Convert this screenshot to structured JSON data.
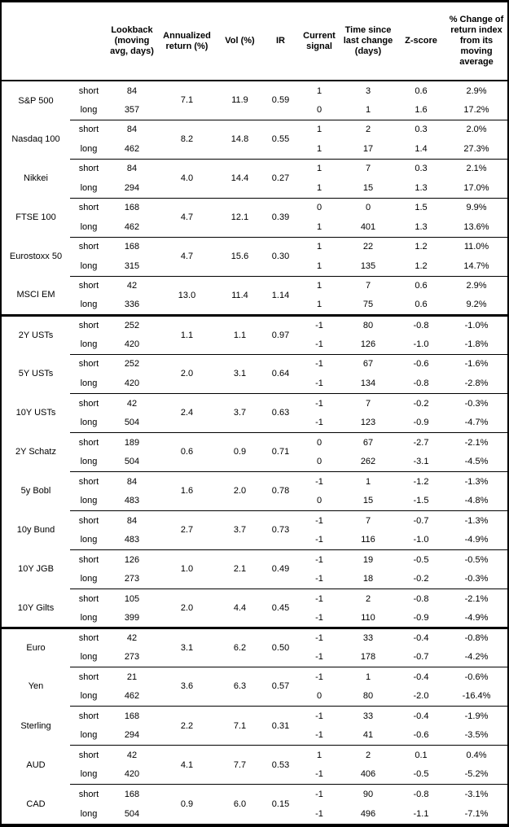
{
  "table": {
    "headers": [
      "",
      "",
      "Lookback (moving avg, days)",
      "Annualized return (%)",
      "Vol (%)",
      "IR",
      "Current signal",
      "Time since last change (days)",
      "Z-score",
      "% Change of return index from its moving average"
    ],
    "leg_labels": {
      "short": "short",
      "long": "long"
    },
    "sections": [
      {
        "assets": [
          {
            "name": "S&P 500",
            "annualized_return": "7.1",
            "vol": "11.9",
            "ir": "0.59",
            "short": {
              "lookback": "84",
              "signal": "1",
              "time_since": "3",
              "z_score": "0.6",
              "pct_change": "2.9%"
            },
            "long": {
              "lookback": "357",
              "signal": "0",
              "time_since": "1",
              "z_score": "1.6",
              "pct_change": "17.2%"
            }
          },
          {
            "name": "Nasdaq 100",
            "annualized_return": "8.2",
            "vol": "14.8",
            "ir": "0.55",
            "short": {
              "lookback": "84",
              "signal": "1",
              "time_since": "2",
              "z_score": "0.3",
              "pct_change": "2.0%"
            },
            "long": {
              "lookback": "462",
              "signal": "1",
              "time_since": "17",
              "z_score": "1.4",
              "pct_change": "27.3%"
            }
          },
          {
            "name": "Nikkei",
            "annualized_return": "4.0",
            "vol": "14.4",
            "ir": "0.27",
            "short": {
              "lookback": "84",
              "signal": "1",
              "time_since": "7",
              "z_score": "0.3",
              "pct_change": "2.1%"
            },
            "long": {
              "lookback": "294",
              "signal": "1",
              "time_since": "15",
              "z_score": "1.3",
              "pct_change": "17.0%"
            }
          },
          {
            "name": "FTSE 100",
            "annualized_return": "4.7",
            "vol": "12.1",
            "ir": "0.39",
            "short": {
              "lookback": "168",
              "signal": "0",
              "time_since": "0",
              "z_score": "1.5",
              "pct_change": "9.9%"
            },
            "long": {
              "lookback": "462",
              "signal": "1",
              "time_since": "401",
              "z_score": "1.3",
              "pct_change": "13.6%"
            }
          },
          {
            "name": "Eurostoxx 50",
            "annualized_return": "4.7",
            "vol": "15.6",
            "ir": "0.30",
            "short": {
              "lookback": "168",
              "signal": "1",
              "time_since": "22",
              "z_score": "1.2",
              "pct_change": "11.0%"
            },
            "long": {
              "lookback": "315",
              "signal": "1",
              "time_since": "135",
              "z_score": "1.2",
              "pct_change": "14.7%"
            }
          },
          {
            "name": "MSCI EM",
            "annualized_return": "13.0",
            "vol": "11.4",
            "ir": "1.14",
            "short": {
              "lookback": "42",
              "signal": "1",
              "time_since": "7",
              "z_score": "0.6",
              "pct_change": "2.9%"
            },
            "long": {
              "lookback": "336",
              "signal": "1",
              "time_since": "75",
              "z_score": "0.6",
              "pct_change": "9.2%"
            }
          }
        ]
      },
      {
        "assets": [
          {
            "name": "2Y USTs",
            "annualized_return": "1.1",
            "vol": "1.1",
            "ir": "0.97",
            "short": {
              "lookback": "252",
              "signal": "-1",
              "time_since": "80",
              "z_score": "-0.8",
              "pct_change": "-1.0%"
            },
            "long": {
              "lookback": "420",
              "signal": "-1",
              "time_since": "126",
              "z_score": "-1.0",
              "pct_change": "-1.8%"
            }
          },
          {
            "name": "5Y USTs",
            "annualized_return": "2.0",
            "vol": "3.1",
            "ir": "0.64",
            "short": {
              "lookback": "252",
              "signal": "-1",
              "time_since": "67",
              "z_score": "-0.6",
              "pct_change": "-1.6%"
            },
            "long": {
              "lookback": "420",
              "signal": "-1",
              "time_since": "134",
              "z_score": "-0.8",
              "pct_change": "-2.8%"
            }
          },
          {
            "name": "10Y USTs",
            "annualized_return": "2.4",
            "vol": "3.7",
            "ir": "0.63",
            "short": {
              "lookback": "42",
              "signal": "-1",
              "time_since": "7",
              "z_score": "-0.2",
              "pct_change": "-0.3%"
            },
            "long": {
              "lookback": "504",
              "signal": "-1",
              "time_since": "123",
              "z_score": "-0.9",
              "pct_change": "-4.7%"
            }
          },
          {
            "name": "2Y Schatz",
            "annualized_return": "0.6",
            "vol": "0.9",
            "ir": "0.71",
            "short": {
              "lookback": "189",
              "signal": "0",
              "time_since": "67",
              "z_score": "-2.7",
              "pct_change": "-2.1%"
            },
            "long": {
              "lookback": "504",
              "signal": "0",
              "time_since": "262",
              "z_score": "-3.1",
              "pct_change": "-4.5%"
            }
          },
          {
            "name": "5y Bobl",
            "annualized_return": "1.6",
            "vol": "2.0",
            "ir": "0.78",
            "short": {
              "lookback": "84",
              "signal": "-1",
              "time_since": "1",
              "z_score": "-1.2",
              "pct_change": "-1.3%"
            },
            "long": {
              "lookback": "483",
              "signal": "0",
              "time_since": "15",
              "z_score": "-1.5",
              "pct_change": "-4.8%"
            }
          },
          {
            "name": "10y Bund",
            "annualized_return": "2.7",
            "vol": "3.7",
            "ir": "0.73",
            "short": {
              "lookback": "84",
              "signal": "-1",
              "time_since": "7",
              "z_score": "-0.7",
              "pct_change": "-1.3%"
            },
            "long": {
              "lookback": "483",
              "signal": "-1",
              "time_since": "116",
              "z_score": "-1.0",
              "pct_change": "-4.9%"
            }
          },
          {
            "name": "10Y JGB",
            "annualized_return": "1.0",
            "vol": "2.1",
            "ir": "0.49",
            "short": {
              "lookback": "126",
              "signal": "-1",
              "time_since": "19",
              "z_score": "-0.5",
              "pct_change": "-0.5%"
            },
            "long": {
              "lookback": "273",
              "signal": "-1",
              "time_since": "18",
              "z_score": "-0.2",
              "pct_change": "-0.3%"
            }
          },
          {
            "name": "10Y Gilts",
            "annualized_return": "2.0",
            "vol": "4.4",
            "ir": "0.45",
            "short": {
              "lookback": "105",
              "signal": "-1",
              "time_since": "2",
              "z_score": "-0.8",
              "pct_change": "-2.1%"
            },
            "long": {
              "lookback": "399",
              "signal": "-1",
              "time_since": "110",
              "z_score": "-0.9",
              "pct_change": "-4.9%"
            }
          }
        ]
      },
      {
        "assets": [
          {
            "name": "Euro",
            "annualized_return": "3.1",
            "vol": "6.2",
            "ir": "0.50",
            "short": {
              "lookback": "42",
              "signal": "-1",
              "time_since": "33",
              "z_score": "-0.4",
              "pct_change": "-0.8%"
            },
            "long": {
              "lookback": "273",
              "signal": "-1",
              "time_since": "178",
              "z_score": "-0.7",
              "pct_change": "-4.2%"
            }
          },
          {
            "name": "Yen",
            "annualized_return": "3.6",
            "vol": "6.3",
            "ir": "0.57",
            "short": {
              "lookback": "21",
              "signal": "-1",
              "time_since": "1",
              "z_score": "-0.4",
              "pct_change": "-0.6%"
            },
            "long": {
              "lookback": "462",
              "signal": "0",
              "time_since": "80",
              "z_score": "-2.0",
              "pct_change": "-16.4%"
            }
          },
          {
            "name": "Sterling",
            "annualized_return": "2.2",
            "vol": "7.1",
            "ir": "0.31",
            "short": {
              "lookback": "168",
              "signal": "-1",
              "time_since": "33",
              "z_score": "-0.4",
              "pct_change": "-1.9%"
            },
            "long": {
              "lookback": "294",
              "signal": "-1",
              "time_since": "41",
              "z_score": "-0.6",
              "pct_change": "-3.5%"
            }
          },
          {
            "name": "AUD",
            "annualized_return": "4.1",
            "vol": "7.7",
            "ir": "0.53",
            "short": {
              "lookback": "42",
              "signal": "1",
              "time_since": "2",
              "z_score": "0.1",
              "pct_change": "0.4%"
            },
            "long": {
              "lookback": "420",
              "signal": "-1",
              "time_since": "406",
              "z_score": "-0.5",
              "pct_change": "-5.2%"
            }
          },
          {
            "name": "CAD",
            "annualized_return": "0.9",
            "vol": "6.0",
            "ir": "0.15",
            "short": {
              "lookback": "168",
              "signal": "-1",
              "time_since": "90",
              "z_score": "-0.8",
              "pct_change": "-3.1%"
            },
            "long": {
              "lookback": "504",
              "signal": "-1",
              "time_since": "496",
              "z_score": "-1.1",
              "pct_change": "-7.1%"
            }
          }
        ]
      }
    ]
  }
}
